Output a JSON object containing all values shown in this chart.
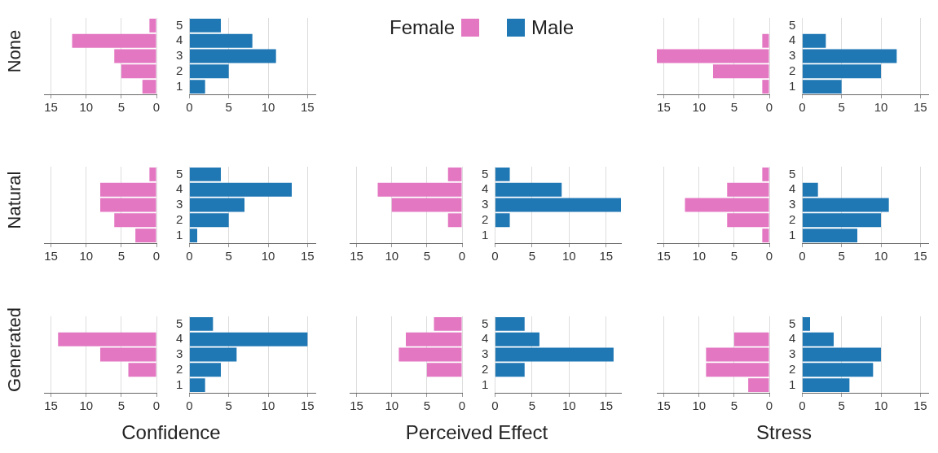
{
  "chart_data": [
    {
      "type": "bar",
      "orientation": "horizontal",
      "ylabel": "None",
      "legend": "top",
      "grid": "x",
      "tick_labels": "x",
      "categories": [
        "5",
        "4",
        "3",
        "2",
        "1"
      ],
      "xlim": [
        16,
        0
      ],
      "xticks": [
        15,
        10,
        5,
        0
      ],
      "series": [
        {
          "name": "Female",
          "color": "#e377c2",
          "values": [
            1,
            12,
            6,
            5,
            2
          ]
        }
      ]
    },
    {
      "type": "bar",
      "orientation": "horizontal",
      "legend": "top",
      "grid": "x",
      "categories": [
        "5",
        "4",
        "3",
        "2",
        "1"
      ],
      "xlim": [
        0,
        16
      ],
      "xticks": [
        0,
        5,
        10,
        15
      ],
      "series": [
        {
          "name": "Male",
          "color": "#1f77b4",
          "values": [
            4,
            8,
            11,
            5,
            2
          ]
        }
      ]
    },
    {
      "type": "bar",
      "orientation": "horizontal",
      "grid": "x",
      "tick_labels": "x",
      "categories": [
        "5",
        "4",
        "3",
        "2",
        "1"
      ],
      "xlim": [
        16,
        0
      ],
      "xticks": [
        15,
        10,
        5,
        0
      ],
      "series": [
        {
          "color": "#e377c2",
          "values": [
            0,
            1,
            16,
            8,
            1
          ]
        }
      ]
    },
    {
      "type": "bar",
      "orientation": "horizontal",
      "grid": "x",
      "categories": [
        "5",
        "4",
        "3",
        "2",
        "1"
      ],
      "xlim": [
        0,
        16
      ],
      "xticks": [
        0,
        5,
        10,
        15
      ],
      "series": [
        {
          "color": "#1f77b4",
          "values": [
            0,
            3,
            12,
            10,
            5
          ]
        }
      ]
    },
    {
      "type": "bar",
      "orientation": "horizontal",
      "ylabel": "Natural",
      "grid": "x",
      "tick_labels": "x",
      "categories": [
        "5",
        "4",
        "3",
        "2",
        "1"
      ],
      "xlim": [
        16,
        0
      ],
      "xticks": [
        15,
        10,
        5,
        0
      ],
      "series": [
        {
          "color": "#e377c2",
          "values": [
            1,
            8,
            8,
            6,
            3
          ]
        }
      ]
    },
    {
      "type": "bar",
      "orientation": "horizontal",
      "grid": "x",
      "categories": [
        "5",
        "4",
        "3",
        "2",
        "1"
      ],
      "xlim": [
        0,
        16
      ],
      "xticks": [
        0,
        5,
        10,
        15
      ],
      "series": [
        {
          "color": "#1f77b4",
          "values": [
            4,
            13,
            7,
            5,
            1
          ]
        }
      ]
    },
    {
      "type": "bar",
      "orientation": "horizontal",
      "grid": "x",
      "tick_labels": "x",
      "categories": [
        "5",
        "4",
        "3",
        "2",
        "1"
      ],
      "xlim": [
        16,
        0
      ],
      "xticks": [
        15,
        10,
        5,
        0
      ],
      "series": [
        {
          "color": "#e377c2",
          "values": [
            2,
            12,
            10,
            2,
            0
          ]
        }
      ]
    },
    {
      "type": "bar",
      "orientation": "horizontal",
      "grid": "x",
      "categories": [
        "5",
        "4",
        "3",
        "2",
        "1"
      ],
      "xlim": [
        0,
        17
      ],
      "xticks": [
        0,
        5,
        10,
        15
      ],
      "series": [
        {
          "color": "#1f77b4",
          "values": [
            2,
            9,
            17,
            2,
            0
          ]
        }
      ]
    },
    {
      "type": "bar",
      "orientation": "horizontal",
      "grid": "x",
      "tick_labels": "x",
      "categories": [
        "5",
        "4",
        "3",
        "2",
        "1"
      ],
      "xlim": [
        16,
        0
      ],
      "xticks": [
        15,
        10,
        5,
        0
      ],
      "series": [
        {
          "color": "#e377c2",
          "values": [
            1,
            6,
            12,
            6,
            1
          ]
        }
      ]
    },
    {
      "type": "bar",
      "orientation": "horizontal",
      "grid": "x",
      "categories": [
        "5",
        "4",
        "3",
        "2",
        "1"
      ],
      "xlim": [
        0,
        16
      ],
      "xticks": [
        0,
        5,
        10,
        15
      ],
      "series": [
        {
          "color": "#1f77b4",
          "values": [
            0,
            2,
            11,
            10,
            7
          ]
        }
      ]
    },
    {
      "type": "bar",
      "orientation": "horizontal",
      "ylabel": "Generated",
      "xlabel": "Confidence",
      "grid": "x",
      "tick_labels": "x",
      "categories": [
        "5",
        "4",
        "3",
        "2",
        "1"
      ],
      "xlim": [
        16,
        0
      ],
      "xticks": [
        15,
        10,
        5,
        0
      ],
      "series": [
        {
          "color": "#e377c2",
          "values": [
            0,
            14,
            8,
            4,
            0
          ]
        }
      ]
    },
    {
      "type": "bar",
      "orientation": "horizontal",
      "grid": "x",
      "categories": [
        "5",
        "4",
        "3",
        "2",
        "1"
      ],
      "xlim": [
        0,
        16
      ],
      "xticks": [
        0,
        5,
        10,
        15
      ],
      "series": [
        {
          "color": "#1f77b4",
          "values": [
            3,
            15,
            6,
            4,
            2
          ]
        }
      ]
    },
    {
      "type": "bar",
      "orientation": "horizontal",
      "xlabel": "Perceived Effect",
      "grid": "x",
      "tick_labels": "x",
      "categories": [
        "5",
        "4",
        "3",
        "2",
        "1"
      ],
      "xlim": [
        16,
        0
      ],
      "xticks": [
        15,
        10,
        5,
        0
      ],
      "series": [
        {
          "color": "#e377c2",
          "values": [
            4,
            8,
            9,
            5,
            0
          ]
        }
      ]
    },
    {
      "type": "bar",
      "orientation": "horizontal",
      "grid": "x",
      "categories": [
        "5",
        "4",
        "3",
        "2",
        "1"
      ],
      "xlim": [
        0,
        17
      ],
      "xticks": [
        0,
        5,
        10,
        15
      ],
      "series": [
        {
          "color": "#1f77b4",
          "values": [
            4,
            6,
            16,
            4,
            0
          ]
        }
      ]
    },
    {
      "type": "bar",
      "orientation": "horizontal",
      "xlabel": "Stress",
      "grid": "x",
      "tick_labels": "x",
      "categories": [
        "5",
        "4",
        "3",
        "2",
        "1"
      ],
      "xlim": [
        16,
        0
      ],
      "xticks": [
        15,
        10,
        5,
        0
      ],
      "series": [
        {
          "color": "#e377c2",
          "values": [
            0,
            5,
            9,
            9,
            3
          ]
        }
      ]
    },
    {
      "type": "bar",
      "orientation": "horizontal",
      "grid": "x",
      "categories": [
        "5",
        "4",
        "3",
        "2",
        "1"
      ],
      "xlim": [
        0,
        16
      ],
      "xticks": [
        0,
        5,
        10,
        15
      ],
      "series": [
        {
          "color": "#1f77b4",
          "values": [
            1,
            4,
            10,
            9,
            6
          ]
        }
      ]
    }
  ]
}
